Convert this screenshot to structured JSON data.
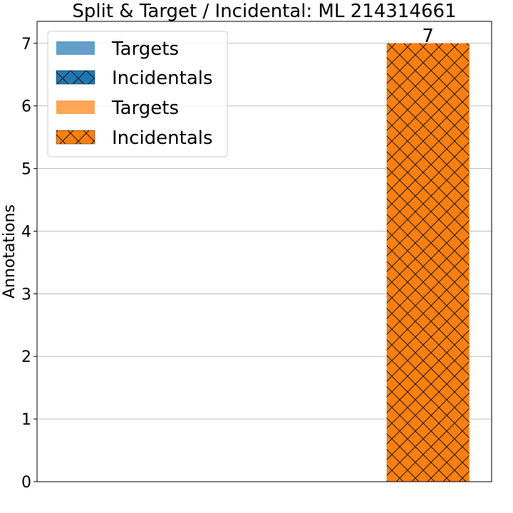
{
  "chart_data": {
    "type": "bar",
    "title": "Split & Target / Incidental: ML 214314661",
    "xlabel": "",
    "ylabel": "Annotations",
    "ylim": [
      0,
      7.35
    ],
    "yticks": [
      0,
      1,
      2,
      3,
      4,
      5,
      6,
      7
    ],
    "grid": "y",
    "legend_position": "top-left",
    "categories": [
      "",
      ""
    ],
    "series": [
      {
        "name": "Targets",
        "color": "#1f77b4",
        "alpha": 0.7,
        "hatch": "none",
        "values": [
          0,
          0
        ]
      },
      {
        "name": "Incidentals",
        "color": "#1f77b4",
        "alpha": 1.0,
        "hatch": "cross",
        "values": [
          0,
          0
        ]
      },
      {
        "name": "Targets",
        "color": "#ff7f0e",
        "alpha": 0.7,
        "hatch": "none",
        "values": [
          0,
          0
        ]
      },
      {
        "name": "Incidentals",
        "color": "#ff7f0e",
        "alpha": 1.0,
        "hatch": "cross",
        "values": [
          0,
          7
        ]
      }
    ],
    "data_labels": [
      {
        "category_index": 1,
        "value": 7,
        "text": "7"
      }
    ]
  }
}
